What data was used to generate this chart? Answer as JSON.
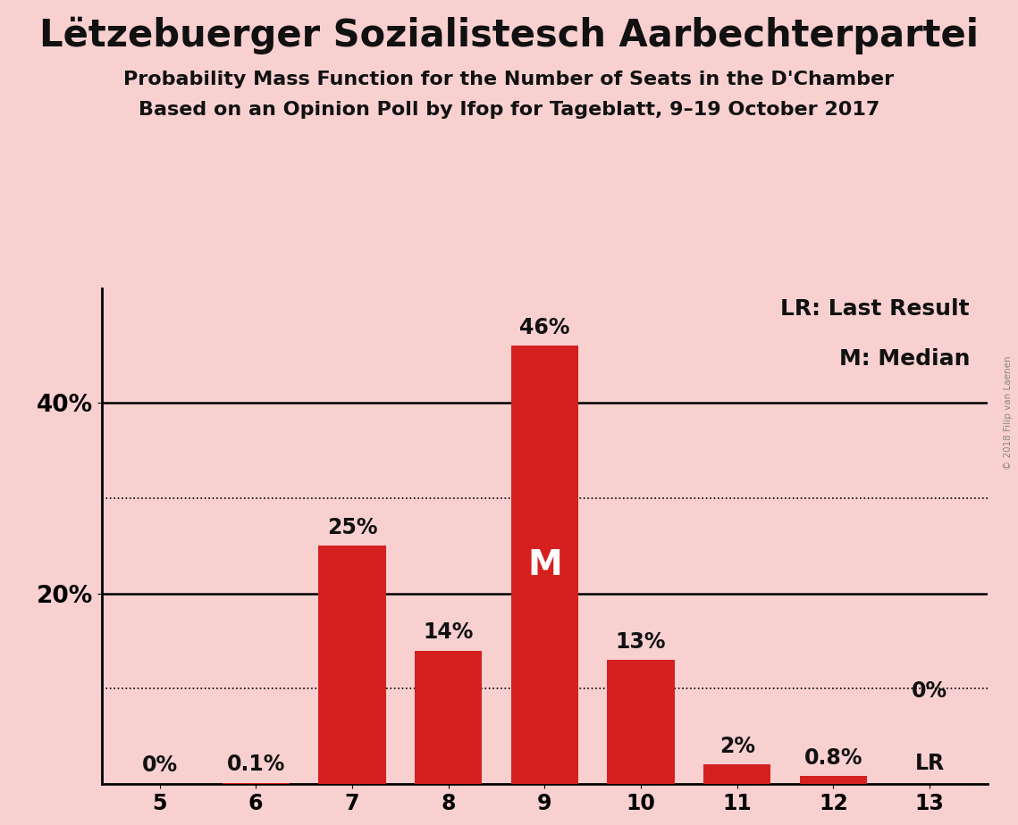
{
  "title": "Lëtzebuerger Sozialistesch Aarbechterpartei",
  "subtitle1": "Probability Mass Function for the Number of Seats in the D'Chamber",
  "subtitle2": "Based on an Opinion Poll by Ifop for Tageblatt, 9–19 October 2017",
  "watermark": "© 2018 Filip van Laenen",
  "categories": [
    5,
    6,
    7,
    8,
    9,
    10,
    11,
    12,
    13
  ],
  "values": [
    0.0,
    0.1,
    25.0,
    14.0,
    46.0,
    13.0,
    2.0,
    0.8,
    0.0
  ],
  "bar_labels": [
    "0%",
    "0.1%",
    "25%",
    "14%",
    "46%",
    "13%",
    "2%",
    "0.8%",
    "0%"
  ],
  "median_bar": 9,
  "last_result_bar": 13,
  "bar_color": "#d62020",
  "background_color": "#f9d0d0",
  "text_color": "#111111",
  "title_fontsize": 30,
  "subtitle_fontsize": 16,
  "label_fontsize": 17,
  "tick_fontsize": 17,
  "ylim": [
    0,
    52
  ],
  "yticks_labeled": [
    20,
    40
  ],
  "ytick_label_values": [
    "20%",
    "40%"
  ],
  "dotted_lines": [
    10,
    30
  ],
  "solid_lines": [
    20,
    40
  ],
  "legend_lr": "LR: Last Result",
  "legend_m": "M: Median",
  "median_label": "M",
  "lr_label": "LR"
}
